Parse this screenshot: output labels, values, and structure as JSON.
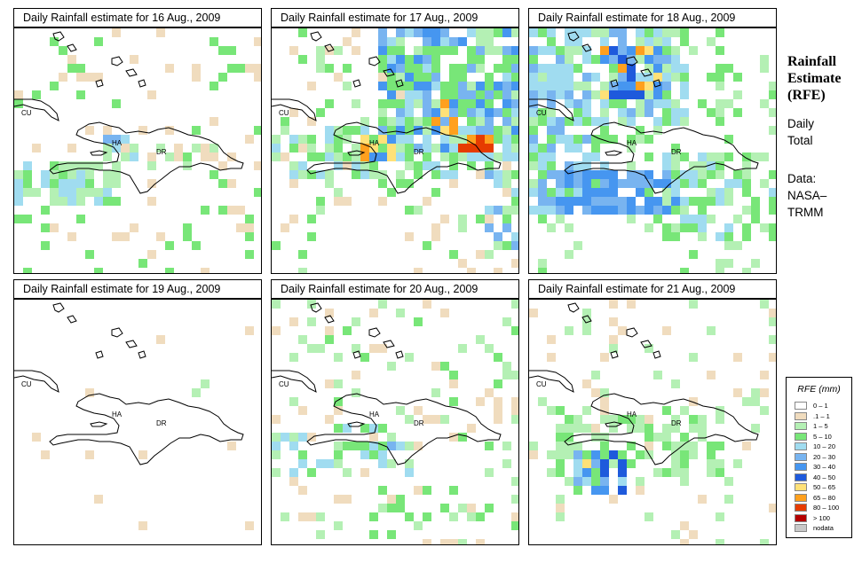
{
  "panels": [
    {
      "title": "Daily Rainfall estimate for  16 Aug., 2009",
      "pattern": "light-south"
    },
    {
      "title": "Daily Rainfall estimate for  17 Aug., 2009",
      "pattern": "heavy-haiti-east"
    },
    {
      "title": "Daily Rainfall estimate for  18 Aug., 2009",
      "pattern": "widespread-north-south"
    },
    {
      "title": "Daily Rainfall estimate for  19 Aug., 2009",
      "pattern": "nearly-dry"
    },
    {
      "title": "Daily Rainfall estimate for  20 Aug., 2009",
      "pattern": "scattered-light"
    },
    {
      "title": "Daily Rainfall estimate for  21 Aug., 2009",
      "pattern": "south-haiti-cluster"
    }
  ],
  "map_labels": {
    "cuba": "CU",
    "haiti": "HA",
    "dr": "DR"
  },
  "side": {
    "title": "Rainfall Estimate (RFE)",
    "title_lines": [
      "Rainfall",
      "Estimate",
      "(RFE)"
    ],
    "period_lines": [
      "Daily",
      "Total"
    ],
    "source_lines": [
      "Data:",
      "NASA–",
      "TRMM"
    ]
  },
  "legend": {
    "title": "RFE (mm)",
    "items": [
      {
        "label": "0 – 1",
        "color": "#ffffff"
      },
      {
        "label": ".1 – 1",
        "color": "#f0dcbe"
      },
      {
        "label": "1 – 5",
        "color": "#b4f0b4"
      },
      {
        "label": "5 – 10",
        "color": "#78e678"
      },
      {
        "label": "10 – 20",
        "color": "#a0dcf0"
      },
      {
        "label": "20 – 30",
        "color": "#78b4f0"
      },
      {
        "label": "30 – 40",
        "color": "#4696f0"
      },
      {
        "label": "40 – 50",
        "color": "#1e5adc"
      },
      {
        "label": "50 – 65",
        "color": "#ffe178"
      },
      {
        "label": "65 – 80",
        "color": "#ffa01e"
      },
      {
        "label": "80 – 100",
        "color": "#e63c00"
      },
      {
        "label": "> 100",
        "color": "#b40000"
      },
      {
        "label": "nodata",
        "color": "#c8c8c8"
      }
    ]
  }
}
